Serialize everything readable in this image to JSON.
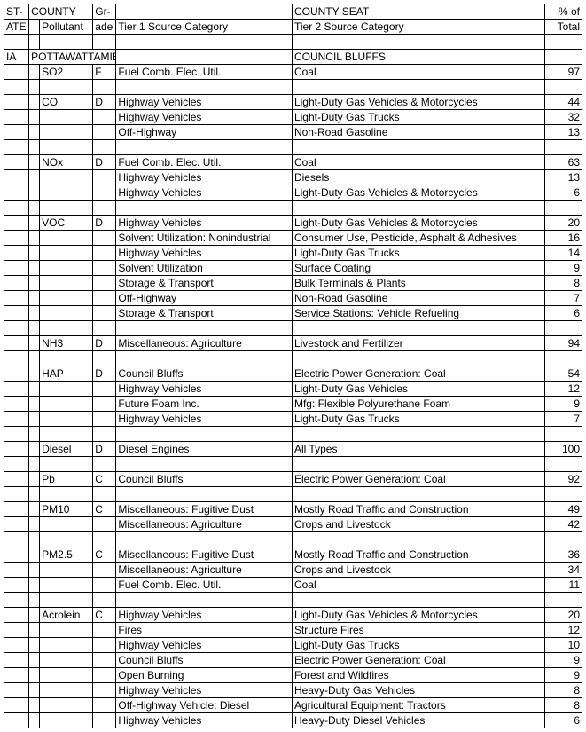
{
  "headers": {
    "state1": "ST-",
    "state2": "ATE",
    "county": "COUNTY",
    "grade1": "Gr-",
    "grade2": "ade",
    "pollutant": "Pollutant",
    "tier1": "Tier 1 Source Category",
    "tier2": "Tier 2 Source Category",
    "county_seat": "COUNTY SEAT",
    "pct1": "% of",
    "pct2": "Total"
  },
  "state_row": {
    "state": "IA",
    "county": "POTTAWATTAMIE",
    "seat": "COUNCIL BLUFFS"
  },
  "rows": [
    {
      "poll": "SO2",
      "grade": "F",
      "t1": "Fuel Comb. Elec. Util.",
      "t2": "Coal",
      "pct": "97"
    },
    {
      "blank": true
    },
    {
      "poll": "CO",
      "grade": "D",
      "t1": "Highway Vehicles",
      "t2": "Light-Duty Gas Vehicles & Motorcycles",
      "pct": "44"
    },
    {
      "t1": "Highway Vehicles",
      "t2": "Light-Duty Gas Trucks",
      "pct": "32"
    },
    {
      "t1": "Off-Highway",
      "t2": "Non-Road Gasoline",
      "pct": "13"
    },
    {
      "blank": true
    },
    {
      "poll": "NOx",
      "grade": "D",
      "t1": "Fuel Comb. Elec. Util.",
      "t2": "Coal",
      "pct": "63"
    },
    {
      "t1": "Highway Vehicles",
      "t2": "Diesels",
      "pct": "13"
    },
    {
      "t1": "Highway Vehicles",
      "t2": "Light-Duty Gas Vehicles & Motorcycles",
      "pct": "6"
    },
    {
      "blank": true
    },
    {
      "poll": "VOC",
      "grade": "D",
      "t1": "Highway Vehicles",
      "t2": "Light-Duty Gas Vehicles & Motorcycles",
      "pct": "20"
    },
    {
      "t1": "Solvent Utilization: Nonindustrial",
      "t2": "Consumer Use, Pesticide, Asphalt & Adhesives",
      "pct": "16"
    },
    {
      "t1": "Highway Vehicles",
      "t2": "Light-Duty Gas Trucks",
      "pct": "14"
    },
    {
      "t1": "Solvent Utilization",
      "t2": "Surface Coating",
      "pct": "9"
    },
    {
      "t1": "Storage & Transport",
      "t2": "Bulk Terminals & Plants",
      "pct": "8"
    },
    {
      "t1": "Off-Highway",
      "t2": "Non-Road Gasoline",
      "pct": "7"
    },
    {
      "t1": "Storage & Transport",
      "t2": "Service Stations: Vehicle Refueling",
      "pct": "6"
    },
    {
      "blank": true
    },
    {
      "poll": "NH3",
      "grade": "D",
      "t1": "Miscellaneous: Agriculture",
      "t2": "Livestock and Fertilizer",
      "pct": "94"
    },
    {
      "blank": true
    },
    {
      "poll": "HAP",
      "grade": "D",
      "t1": "Council Bluffs",
      "t2": "Electric Power Generation: Coal",
      "pct": "54"
    },
    {
      "t1": "Highway Vehicles",
      "t2": "Light-Duty Gas Vehicles",
      "pct": "12"
    },
    {
      "t1": "Future Foam Inc.",
      "t2": "Mfg: Flexible Polyurethane Foam",
      "pct": "9"
    },
    {
      "t1": "Highway Vehicles",
      "t2": "Light-Duty Gas Trucks",
      "pct": "7"
    },
    {
      "blank": true
    },
    {
      "poll": "Diesel",
      "grade": "D",
      "t1": "Diesel Engines",
      "t2": "All Types",
      "pct": "100"
    },
    {
      "blank": true
    },
    {
      "poll": "Pb",
      "grade": "C",
      "t1": "Council Bluffs",
      "t2": "Electric Power Generation: Coal",
      "pct": "92"
    },
    {
      "blank": true
    },
    {
      "poll": "PM10",
      "grade": "C",
      "t1": "Miscellaneous: Fugitive Dust",
      "t2": "Mostly Road Traffic and Construction",
      "pct": "49"
    },
    {
      "t1": "Miscellaneous: Agriculture",
      "t2": "Crops and Livestock",
      "pct": "42"
    },
    {
      "blank": true
    },
    {
      "poll": "PM2.5",
      "grade": "C",
      "t1": "Miscellaneous: Fugitive Dust",
      "t2": "Mostly Road Traffic and Construction",
      "pct": "36"
    },
    {
      "t1": "Miscellaneous: Agriculture",
      "t2": "Crops and Livestock",
      "pct": "34"
    },
    {
      "t1": "Fuel Comb. Elec. Util.",
      "t2": "Coal",
      "pct": "11"
    },
    {
      "blank": true
    },
    {
      "poll": "Acrolein",
      "grade": "C",
      "t1": "Highway Vehicles",
      "t2": "Light-Duty Gas Vehicles & Motorcycles",
      "pct": "20"
    },
    {
      "t1": "Fires",
      "t2": "Structure Fires",
      "pct": "12"
    },
    {
      "t1": "Highway Vehicles",
      "t2": "Light-Duty Gas Trucks",
      "pct": "10"
    },
    {
      "t1": "Council Bluffs",
      "t2": "Electric Power Generation: Coal",
      "pct": "9"
    },
    {
      "t1": "Open Burning",
      "t2": "Forest and Wildfires",
      "pct": "9"
    },
    {
      "t1": "Highway Vehicles",
      "t2": "Heavy-Duty Gas Vehicles",
      "pct": "8"
    },
    {
      "t1": "Off-Highway Vehicle: Diesel",
      "t2": "Agricultural Equipment: Tractors",
      "pct": "8"
    },
    {
      "t1": "Highway Vehicles",
      "t2": "Heavy-Duty Diesel Vehicles",
      "pct": "6"
    }
  ]
}
